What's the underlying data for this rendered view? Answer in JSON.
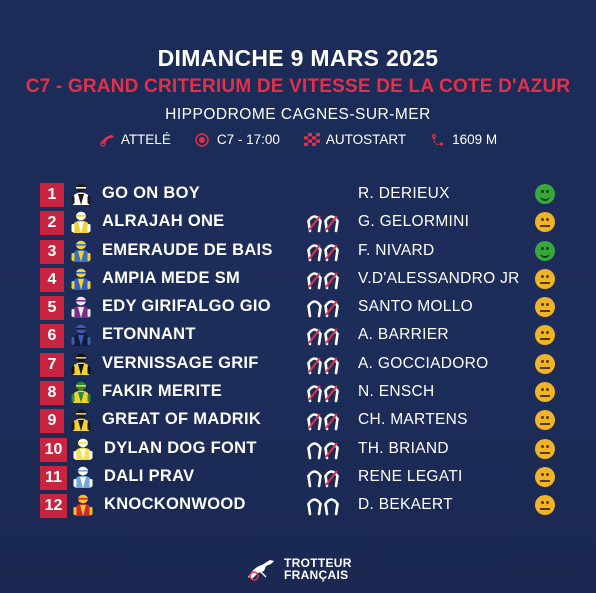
{
  "header": {
    "date": "DIMANCHE 9 MARS 2025",
    "race": "C7 - GRAND CRITERIUM DE VITESSE DE LA COTE D'AZUR",
    "venue": "HIPPODROME CAGNES-SUR-MER"
  },
  "info": {
    "discipline": "ATTELÉ",
    "race_time": "C7 - 17:00",
    "start_type": "AUTOSTART",
    "distance": "1609 M"
  },
  "runners": [
    {
      "num": "1",
      "horse": "GO ON BOY",
      "driver": "R. DERIEUX",
      "shoes": "none",
      "mood": "green",
      "colors": [
        "#ffffff",
        "#1a1a1a"
      ]
    },
    {
      "num": "2",
      "horse": "ALRAJAH ONE",
      "driver": "G. GELORMINI",
      "shoes": "both",
      "mood": "yellow",
      "colors": [
        "#f2d22e",
        "#ffffff"
      ]
    },
    {
      "num": "3",
      "horse": "EMERAUDE DE BAIS",
      "driver": "F. NIVARD",
      "shoes": "both",
      "mood": "green",
      "colors": [
        "#3a6fc1",
        "#f2d22e"
      ]
    },
    {
      "num": "4",
      "horse": "AMPIA MEDE SM",
      "driver": "V.D'ALESSANDRO JR",
      "shoes": "both",
      "mood": "yellow",
      "colors": [
        "#2c62c7",
        "#f2d22e"
      ]
    },
    {
      "num": "5",
      "horse": "EDY GIRIFALGO GIO",
      "driver": "SANTO MOLLO",
      "shoes": "front",
      "mood": "yellow",
      "colors": [
        "#7a2d8c",
        "#e8e8e8"
      ]
    },
    {
      "num": "6",
      "horse": "ETONNANT",
      "driver": "A. BARRIER",
      "shoes": "both",
      "mood": "yellow",
      "colors": [
        "#121a3a",
        "#3b5bb5"
      ]
    },
    {
      "num": "7",
      "horse": "VERNISSAGE GRIF",
      "driver": "A. GOCCIADORO",
      "shoes": "both",
      "mood": "yellow",
      "colors": [
        "#f2d22e",
        "#111111"
      ]
    },
    {
      "num": "8",
      "horse": "FAKIR MERITE",
      "driver": "N.  ENSCH",
      "shoes": "both",
      "mood": "yellow",
      "colors": [
        "#f2d22e",
        "#2a8a3c"
      ]
    },
    {
      "num": "9",
      "horse": "GREAT OF MADRIK",
      "driver": "CH. MARTENS",
      "shoes": "both",
      "mood": "yellow",
      "colors": [
        "#f2d22e",
        "#1a1a1a"
      ]
    },
    {
      "num": "10",
      "horse": "DYLAN DOG FONT",
      "driver": "TH. BRIAND",
      "shoes": "front",
      "mood": "yellow",
      "colors": [
        "#f4e24a",
        "#ffffff"
      ]
    },
    {
      "num": "11",
      "horse": "DALI PRAV",
      "driver": "RENE LEGATI",
      "shoes": "front",
      "mood": "yellow",
      "colors": [
        "#6fa9dc",
        "#ffffff"
      ]
    },
    {
      "num": "12",
      "horse": "KNOCKONWOOD",
      "driver": "D. BEKAERT",
      "shoes": "none-open",
      "mood": "yellow",
      "colors": [
        "#d1262b",
        "#f2c22e"
      ]
    }
  ],
  "footer": {
    "logo_line1": "TROTTEUR",
    "logo_line2": "FRANÇAIS"
  },
  "theme": {
    "background": "#1d2c57",
    "accent": "#c9243f",
    "race_title": "#e2304a",
    "mood_green": "#36a83c",
    "mood_yellow": "#f0b429"
  },
  "icons": {
    "discipline": "sulky-icon",
    "race_time": "target-icon",
    "start_type": "checkered-flag-icon",
    "distance": "route-pin-icon"
  }
}
